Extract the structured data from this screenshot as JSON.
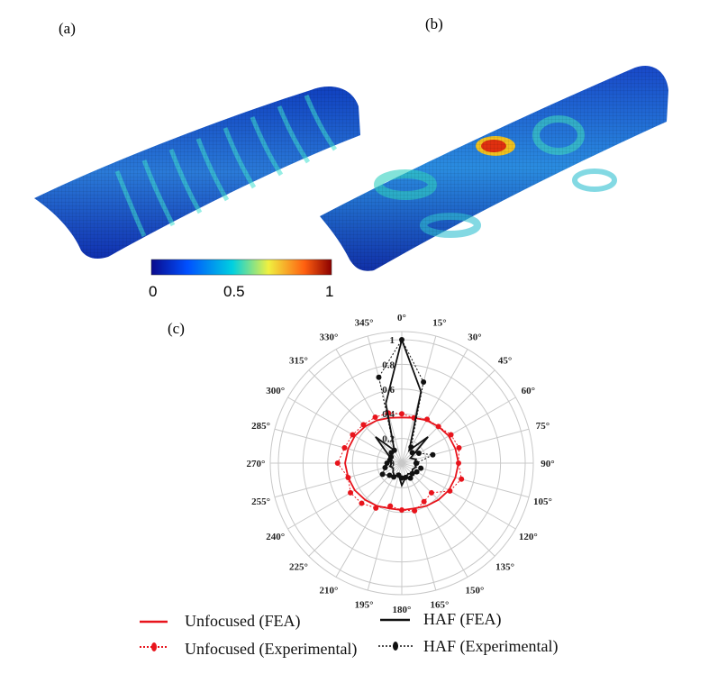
{
  "panels": {
    "a": "(a)",
    "b": "(b)",
    "c": "(c)"
  },
  "colorbar": {
    "ticks": [
      "0",
      "0.5",
      "1"
    ],
    "colors": [
      "#0a0a8c",
      "#0050ff",
      "#00d0e0",
      "#f0f040",
      "#ff6010",
      "#8b0000"
    ]
  },
  "chart_data": {
    "type": "polar",
    "angles_deg": [
      0,
      15,
      30,
      45,
      60,
      75,
      90,
      105,
      120,
      135,
      150,
      165,
      180,
      195,
      210,
      225,
      240,
      255,
      270,
      285,
      300,
      315,
      330,
      345
    ],
    "angle_labels": [
      "0°",
      "15°",
      "30°",
      "45°",
      "60°",
      "75°",
      "90°",
      "105°",
      "120°",
      "135°",
      "150°",
      "165°",
      "180°",
      "195°",
      "210°",
      "225°",
      "240°",
      "255°",
      "270°",
      "285°",
      "300°",
      "315°",
      "330°",
      "345°"
    ],
    "radial_ticks": [
      "0",
      "0.2",
      "0.4",
      "0.6",
      "0.8",
      "1"
    ],
    "rlim": [
      0,
      1
    ],
    "grid": true,
    "legend_placement": "bottom",
    "series": [
      {
        "name": "Unfocused (FEA)",
        "color": "#e8141c",
        "style": "solid",
        "values": [
          0.37,
          0.38,
          0.4,
          0.42,
          0.44,
          0.45,
          0.46,
          0.45,
          0.44,
          0.42,
          0.4,
          0.38,
          0.38,
          0.38,
          0.4,
          0.42,
          0.44,
          0.45,
          0.46,
          0.45,
          0.44,
          0.42,
          0.4,
          0.38
        ]
      },
      {
        "name": "Unfocused (Experimental)",
        "color": "#e8141c",
        "style": "dotted-markers",
        "values": [
          0.4,
          0.38,
          0.41,
          0.42,
          0.46,
          0.48,
          0.46,
          0.5,
          0.45,
          0.34,
          0.36,
          0.4,
          0.38,
          0.36,
          0.42,
          0.46,
          0.48,
          0.45,
          0.52,
          0.48,
          0.46,
          0.44,
          0.43,
          0.42
        ]
      },
      {
        "name": "HAF (FEA)",
        "color": "#111111",
        "style": "solid",
        "values": [
          1.0,
          0.6,
          0.12,
          0.3,
          0.08,
          0.12,
          0.1,
          0.12,
          0.1,
          0.12,
          0.1,
          0.12,
          0.18,
          0.1,
          0.12,
          0.1,
          0.08,
          0.1,
          0.08,
          0.1,
          0.12,
          0.3,
          0.12,
          0.5
        ]
      },
      {
        "name": "HAF (Experimental)",
        "color": "#111111",
        "style": "dotted-markers",
        "values": [
          1.0,
          0.68,
          0.15,
          0.12,
          0.16,
          0.26,
          0.12,
          0.16,
          0.14,
          0.12,
          0.14,
          0.12,
          0.12,
          0.1,
          0.13,
          0.14,
          0.18,
          0.14,
          0.12,
          0.1,
          0.1,
          0.12,
          0.12,
          0.72
        ]
      }
    ]
  }
}
